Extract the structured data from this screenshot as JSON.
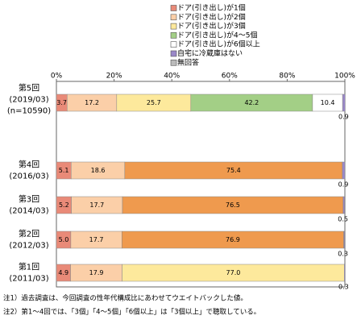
{
  "chart_data": {
    "type": "stacked-bar-horizontal",
    "categories": [
      [
        "第5回",
        "(2019/03)",
        "(n=10590)"
      ],
      [
        "第4回",
        "(2016/03)"
      ],
      [
        "第3回",
        "(2014/03)"
      ],
      [
        "第2回",
        "(2012/03)"
      ],
      [
        "第1回",
        "(2011/03)"
      ]
    ],
    "series": [
      {
        "name": "ドア(引き出し)が1個",
        "color": "#e98a78",
        "values": [
          3.7,
          5.1,
          5.2,
          5.0,
          4.9
        ],
        "value_labels": [
          "3.7",
          "5.1",
          "5.2",
          "5.0",
          "4.9"
        ]
      },
      {
        "name": "ドア(引き出し)が2個",
        "color": "#fbcfa8",
        "values": [
          17.2,
          18.6,
          17.7,
          17.7,
          17.9
        ],
        "value_labels": [
          "17.2",
          "18.6",
          "17.7",
          "17.7",
          "17.9"
        ]
      },
      {
        "name": "ドア(引き出し)が3個",
        "color": "#fde99c",
        "colors": [
          "#fde99c",
          "#ef9a4e",
          "#ef9a4e",
          "#ef9a4e",
          "#fde99c"
        ],
        "values": [
          25.7,
          75.4,
          76.5,
          76.9,
          77.0
        ],
        "value_labels": [
          "25.7",
          "75.4",
          "76.5",
          "76.9",
          "77.0"
        ]
      },
      {
        "name": "ドア(引き出し)が4～5個",
        "color": "#a3cf86",
        "values": [
          42.2,
          null,
          null,
          null,
          null
        ],
        "value_labels": [
          "42.2",
          null,
          null,
          null,
          null
        ]
      },
      {
        "name": "ドア(引き出し)が6個以上",
        "color": "#ffffff",
        "values": [
          10.4,
          null,
          null,
          null,
          null
        ],
        "value_labels": [
          "10.4",
          null,
          null,
          null,
          null
        ]
      },
      {
        "name": "自宅に冷蔵庫はない",
        "color": "#9a88c8",
        "values": [
          0.9,
          0.9,
          0.5,
          0.3,
          0.3
        ],
        "value_labels": [
          "0.9",
          "0.9",
          "0.5",
          "0.3",
          "0.3"
        ]
      },
      {
        "name": "無回答",
        "color": "#bbbbbb",
        "values": [
          null,
          null,
          null,
          null,
          null
        ]
      }
    ],
    "xlim": [
      0,
      100
    ],
    "xticks": [
      {
        "value": 0,
        "label": "0%"
      },
      {
        "value": 20,
        "label": "20%"
      },
      {
        "value": 40,
        "label": "40%"
      },
      {
        "value": 60,
        "label": "60%"
      },
      {
        "value": 80,
        "label": "80%"
      },
      {
        "value": 100,
        "label": "100%"
      }
    ],
    "notes": [
      "注1）過去調査は、今回調査の性年代構成比にあわせてウエイトバックした値。",
      "注2）第1～4回では、「3個」「4～5個」「6個以上」は「3個以上」で聴取している。"
    ]
  }
}
